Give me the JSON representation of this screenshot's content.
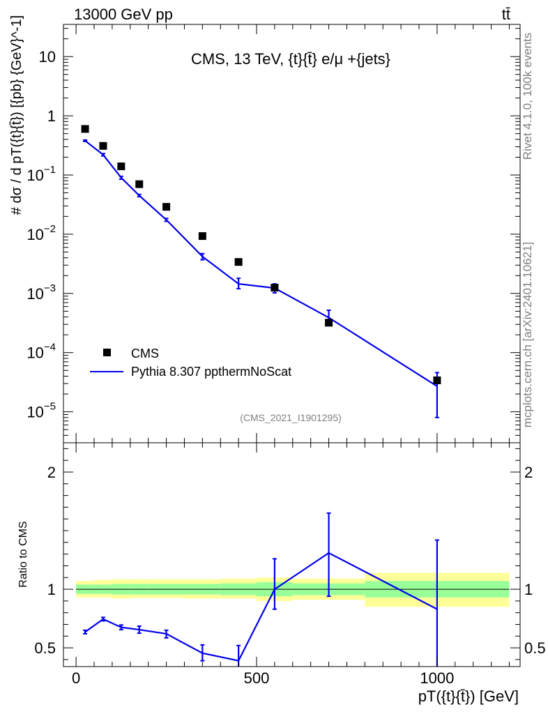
{
  "header": {
    "left": "13000 GeV pp",
    "right": "tt̄"
  },
  "side_labels": {
    "rivet": "Rivet 4.1.0,  100k events",
    "mcplots": "mcplots.cern.ch [arXiv:2401.10621]"
  },
  "chart_data": [
    {
      "type": "scatter",
      "title": "CMS, 13 TeV, {t}{t̄} e/μ +{jets}",
      "ylabel": "# dσ / d pT({t}{t̄}) [{pb} {GeV}^-1]",
      "yscale": "log",
      "xlim": [
        -35,
        1230
      ],
      "ylim": [
        3e-06,
        35
      ],
      "yticks": [
        {
          "v": 1e-05,
          "base": "10",
          "exp": "−5"
        },
        {
          "v": 0.0001,
          "base": "10",
          "exp": "−4"
        },
        {
          "v": 0.001,
          "base": "10",
          "exp": "−3"
        },
        {
          "v": 0.01,
          "base": "10",
          "exp": "−2"
        },
        {
          "v": 0.1,
          "base": "10",
          "exp": "−1"
        },
        {
          "v": 1,
          "base": "1",
          "exp": ""
        },
        {
          "v": 10,
          "base": "10",
          "exp": ""
        }
      ],
      "watermark": "(CMS_2021_I1901295)",
      "legend": [
        {
          "name": "CMS",
          "style": "marker",
          "color": "#000000"
        },
        {
          "name": "Pythia 8.307 ppthermNoScat",
          "style": "line",
          "color": "#0000ee"
        }
      ],
      "series": [
        {
          "name": "CMS",
          "x": [
            25,
            75,
            125,
            175,
            250,
            350,
            450,
            550,
            700,
            1000
          ],
          "y": [
            0.6,
            0.31,
            0.14,
            0.07,
            0.029,
            0.0093,
            0.0034,
            0.00125,
            0.00032,
            3.4e-05
          ]
        },
        {
          "name": "Pythia 8.307 ppthermNoScat",
          "x": [
            25,
            75,
            125,
            175,
            250,
            350,
            450,
            550,
            700,
            1000
          ],
          "y": [
            0.38,
            0.22,
            0.09,
            0.045,
            0.0175,
            0.0042,
            0.00145,
            0.00123,
            0.00039,
            2.7e-05
          ],
          "err_lo": [
            0.37,
            0.21,
            0.085,
            0.043,
            0.0165,
            0.0037,
            0.0012,
            0.00102,
            0.00031,
            8e-06
          ],
          "err_hi": [
            0.39,
            0.23,
            0.095,
            0.047,
            0.0185,
            0.0047,
            0.0018,
            0.00145,
            0.00052,
            4.6e-05
          ]
        }
      ]
    },
    {
      "type": "line",
      "ylabel": "Ratio to CMS",
      "xlabel": "pT({t}{t̄}) [GeV]",
      "xlim": [
        -35,
        1230
      ],
      "ylim": [
        0.34,
        2.25
      ],
      "xticks": [
        0,
        500,
        1000
      ],
      "yticks": [
        0.5,
        1,
        2
      ],
      "bands": [
        {
          "x0": 0,
          "x1": 50,
          "inner": [
            0.96,
            1.04
          ],
          "outer": [
            0.93,
            1.07
          ]
        },
        {
          "x0": 50,
          "x1": 100,
          "inner": [
            0.96,
            1.04
          ],
          "outer": [
            0.93,
            1.08
          ]
        },
        {
          "x0": 100,
          "x1": 150,
          "inner": [
            0.955,
            1.045
          ],
          "outer": [
            0.92,
            1.085
          ]
        },
        {
          "x0": 150,
          "x1": 200,
          "inner": [
            0.955,
            1.045
          ],
          "outer": [
            0.925,
            1.085
          ]
        },
        {
          "x0": 200,
          "x1": 300,
          "inner": [
            0.955,
            1.045
          ],
          "outer": [
            0.925,
            1.085
          ]
        },
        {
          "x0": 300,
          "x1": 400,
          "inner": [
            0.955,
            1.045
          ],
          "outer": [
            0.92,
            1.085
          ]
        },
        {
          "x0": 400,
          "x1": 500,
          "inner": [
            0.95,
            1.05
          ],
          "outer": [
            0.92,
            1.09
          ]
        },
        {
          "x0": 500,
          "x1": 600,
          "inner": [
            0.94,
            1.06
          ],
          "outer": [
            0.9,
            1.1
          ]
        },
        {
          "x0": 600,
          "x1": 800,
          "inner": [
            0.95,
            1.05
          ],
          "outer": [
            0.91,
            1.09
          ]
        },
        {
          "x0": 800,
          "x1": 1200,
          "inner": [
            0.93,
            1.07
          ],
          "outer": [
            0.85,
            1.14
          ]
        }
      ],
      "series": [
        {
          "name": "Pythia 8.307 ppthermNoScat",
          "x": [
            25,
            75,
            125,
            175,
            250,
            350,
            450,
            550,
            700,
            1000
          ],
          "y": [
            0.635,
            0.745,
            0.675,
            0.655,
            0.62,
            0.455,
            0.39,
            1.0,
            1.31,
            0.83
          ],
          "err_lo": [
            0.62,
            0.73,
            0.655,
            0.625,
            0.585,
            0.39,
            0.3,
            0.83,
            0.94,
            0.34
          ],
          "err_hi": [
            0.65,
            0.76,
            0.695,
            0.685,
            0.65,
            0.525,
            0.52,
            1.26,
            1.65,
            1.42
          ]
        }
      ]
    }
  ]
}
